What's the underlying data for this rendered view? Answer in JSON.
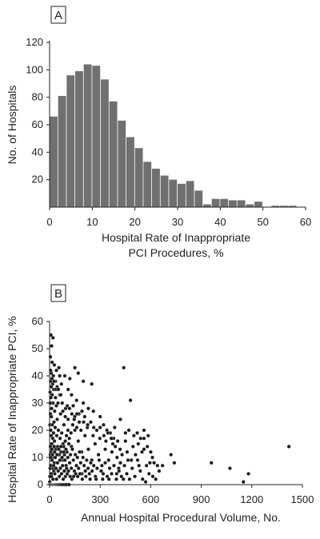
{
  "colors": {
    "bar": "#707070",
    "point": "#1a1a1a",
    "axis": "#222222"
  },
  "chart_data": [
    {
      "panel_label": "A",
      "type": "bar",
      "ylabel": "No. of Hospitals",
      "xlabel_lines": [
        "Hospital Rate of Inappropriate",
        "PCI Procedures, %"
      ],
      "xlim": [
        0,
        60
      ],
      "ylim": [
        0,
        120
      ],
      "xticks": [
        0,
        10,
        20,
        30,
        40,
        50,
        60
      ],
      "yticks": [
        20,
        40,
        60,
        80,
        100,
        120
      ],
      "bin_width": 2,
      "bin_starts": [
        0,
        2,
        4,
        6,
        8,
        10,
        12,
        14,
        16,
        18,
        20,
        22,
        24,
        26,
        28,
        30,
        32,
        34,
        36,
        38,
        40,
        42,
        44,
        46,
        48,
        50,
        52,
        54,
        56
      ],
      "values": [
        66,
        81,
        96,
        99,
        104,
        103,
        93,
        77,
        63,
        51,
        43,
        33,
        28,
        23,
        20,
        17,
        19,
        12,
        2,
        6,
        6,
        5,
        5,
        2,
        4,
        0,
        1,
        1,
        1
      ]
    },
    {
      "panel_label": "B",
      "type": "scatter",
      "ylabel": "Hospital Rate of Inappropriate PCI, %",
      "xlabel": "Annual Hospital Procedural Volume, No.",
      "xlim": [
        0,
        1500
      ],
      "ylim": [
        0,
        60
      ],
      "xticks": [
        0,
        300,
        600,
        900,
        1200,
        1500
      ],
      "yticks": [
        0,
        10,
        20,
        30,
        40,
        50,
        60
      ],
      "points": [
        [
          8,
          55
        ],
        [
          20,
          54
        ],
        [
          12,
          51
        ],
        [
          5,
          47
        ],
        [
          15,
          45
        ],
        [
          28,
          44
        ],
        [
          40,
          42
        ],
        [
          10,
          41
        ],
        [
          22,
          40
        ],
        [
          55,
          43
        ],
        [
          60,
          40
        ],
        [
          35,
          38
        ],
        [
          18,
          37
        ],
        [
          45,
          36
        ],
        [
          70,
          37
        ],
        [
          90,
          40
        ],
        [
          150,
          43
        ],
        [
          120,
          39
        ],
        [
          170,
          41
        ],
        [
          200,
          38
        ],
        [
          250,
          37
        ],
        [
          440,
          43
        ],
        [
          480,
          31
        ],
        [
          110,
          35
        ],
        [
          130,
          33
        ],
        [
          160,
          31
        ],
        [
          140,
          29
        ],
        [
          200,
          30
        ],
        [
          230,
          28
        ],
        [
          260,
          27
        ],
        [
          300,
          25
        ],
        [
          320,
          22
        ],
        [
          340,
          20
        ],
        [
          360,
          19
        ],
        [
          380,
          17
        ],
        [
          420,
          24
        ],
        [
          470,
          20
        ],
        [
          500,
          18
        ],
        [
          540,
          17
        ],
        [
          560,
          13
        ],
        [
          610,
          10
        ],
        [
          670,
          7
        ],
        [
          720,
          11
        ],
        [
          740,
          8
        ],
        [
          960,
          8
        ],
        [
          1070,
          6
        ],
        [
          1150,
          1
        ],
        [
          1180,
          4
        ],
        [
          1420,
          14
        ],
        [
          560,
          20
        ],
        [
          580,
          14
        ],
        [
          600,
          12
        ],
        [
          620,
          8
        ],
        [
          640,
          7
        ],
        [
          460,
          12
        ],
        [
          450,
          16
        ],
        [
          430,
          11
        ],
        [
          420,
          8
        ],
        [
          410,
          6
        ],
        [
          400,
          10
        ],
        [
          390,
          14
        ],
        [
          370,
          12
        ],
        [
          350,
          9
        ],
        [
          330,
          13
        ],
        [
          310,
          7
        ],
        [
          290,
          11
        ],
        [
          270,
          15
        ],
        [
          250,
          9
        ],
        [
          230,
          13
        ],
        [
          210,
          18
        ],
        [
          190,
          12
        ],
        [
          170,
          16
        ],
        [
          150,
          20
        ],
        [
          130,
          14
        ],
        [
          110,
          24
        ],
        [
          100,
          18
        ],
        [
          95,
          28
        ],
        [
          85,
          22
        ],
        [
          80,
          15
        ],
        [
          75,
          30
        ],
        [
          65,
          26
        ],
        [
          60,
          33
        ],
        [
          50,
          30
        ],
        [
          45,
          24
        ],
        [
          40,
          29
        ],
        [
          35,
          32
        ],
        [
          30,
          27
        ],
        [
          25,
          35
        ],
        [
          20,
          30
        ],
        [
          15,
          33
        ],
        [
          12,
          28
        ],
        [
          10,
          36
        ],
        [
          8,
          32
        ],
        [
          6,
          38
        ],
        [
          5,
          26
        ],
        [
          4,
          30
        ],
        [
          3,
          34
        ],
        [
          2,
          22
        ],
        [
          7,
          20
        ],
        [
          9,
          18
        ],
        [
          11,
          25
        ],
        [
          13,
          15
        ],
        [
          16,
          22
        ],
        [
          19,
          17
        ],
        [
          23,
          19
        ],
        [
          26,
          23
        ],
        [
          29,
          16
        ],
        [
          33,
          21
        ],
        [
          37,
          13
        ],
        [
          42,
          18
        ],
        [
          48,
          14
        ],
        [
          52,
          20
        ],
        [
          57,
          11
        ],
        [
          62,
          17
        ],
        [
          68,
          12
        ],
        [
          72,
          19
        ],
        [
          78,
          9
        ],
        [
          83,
          14
        ],
        [
          88,
          11
        ],
        [
          93,
          16
        ],
        [
          98,
          7
        ],
        [
          103,
          12
        ],
        [
          108,
          10
        ],
        [
          114,
          15
        ],
        [
          119,
          8
        ],
        [
          124,
          11
        ],
        [
          129,
          6
        ],
        [
          135,
          13
        ],
        [
          141,
          9
        ],
        [
          147,
          5
        ],
        [
          153,
          11
        ],
        [
          159,
          7
        ],
        [
          165,
          10
        ],
        [
          172,
          6
        ],
        [
          178,
          12
        ],
        [
          184,
          8
        ],
        [
          192,
          4
        ],
        [
          198,
          10
        ],
        [
          205,
          7
        ],
        [
          212,
          5
        ],
        [
          220,
          9
        ],
        [
          228,
          6
        ],
        [
          236,
          4
        ],
        [
          244,
          8
        ],
        [
          252,
          5
        ],
        [
          262,
          7
        ],
        [
          272,
          3
        ],
        [
          282,
          6
        ],
        [
          294,
          9
        ],
        [
          306,
          5
        ],
        [
          318,
          4
        ],
        [
          330,
          8
        ],
        [
          342,
          3
        ],
        [
          356,
          6
        ],
        [
          368,
          4
        ],
        [
          382,
          7
        ],
        [
          396,
          2
        ],
        [
          412,
          5
        ],
        [
          426,
          3
        ],
        [
          444,
          7
        ],
        [
          458,
          4
        ],
        [
          474,
          2
        ],
        [
          490,
          6
        ],
        [
          506,
          3
        ],
        [
          522,
          9
        ],
        [
          538,
          5
        ],
        [
          552,
          2
        ],
        [
          575,
          7
        ],
        [
          590,
          4
        ],
        [
          612,
          3
        ],
        [
          548,
          12
        ],
        [
          526,
          15
        ],
        [
          510,
          11
        ],
        [
          495,
          14
        ],
        [
          485,
          9
        ],
        [
          30,
          12
        ],
        [
          28,
          8
        ],
        [
          25,
          5
        ],
        [
          22,
          10
        ],
        [
          18,
          6
        ],
        [
          14,
          9
        ],
        [
          10,
          4
        ],
        [
          8,
          12
        ],
        [
          6,
          7
        ],
        [
          4,
          11
        ],
        [
          3,
          6
        ],
        [
          2,
          3
        ],
        [
          1,
          1
        ],
        [
          5,
          14
        ],
        [
          7,
          10
        ],
        [
          9,
          7
        ],
        [
          11,
          3
        ],
        [
          14,
          13
        ],
        [
          17,
          11
        ],
        [
          20,
          2
        ],
        [
          24,
          7
        ],
        [
          27,
          14
        ],
        [
          31,
          4
        ],
        [
          34,
          10
        ],
        [
          38,
          6
        ],
        [
          41,
          2
        ],
        [
          44,
          11
        ],
        [
          47,
          8
        ],
        [
          51,
          5
        ],
        [
          54,
          13
        ],
        [
          58,
          3
        ],
        [
          61,
          9
        ],
        [
          64,
          6
        ],
        [
          67,
          14
        ],
        [
          71,
          4
        ],
        [
          74,
          10
        ],
        [
          77,
          7
        ],
        [
          81,
          2
        ],
        [
          84,
          12
        ],
        [
          87,
          5
        ],
        [
          91,
          9
        ],
        [
          94,
          3
        ],
        [
          97,
          13
        ],
        [
          101,
          6
        ],
        [
          105,
          4
        ],
        [
          109,
          20
        ],
        [
          112,
          5
        ],
        [
          117,
          17
        ],
        [
          122,
          3
        ],
        [
          127,
          19
        ],
        [
          132,
          2
        ],
        [
          137,
          22
        ],
        [
          143,
          3
        ],
        [
          149,
          25
        ],
        [
          155,
          4
        ],
        [
          161,
          21
        ],
        [
          167,
          3
        ],
        [
          174,
          26
        ],
        [
          180,
          4
        ],
        [
          186,
          20
        ],
        [
          194,
          2
        ],
        [
          202,
          23
        ],
        [
          215,
          3
        ],
        [
          224,
          21
        ],
        [
          240,
          2
        ],
        [
          258,
          18
        ],
        [
          276,
          2
        ],
        [
          298,
          17
        ],
        [
          315,
          2
        ],
        [
          334,
          16
        ],
        [
          352,
          2
        ],
        [
          375,
          15
        ],
        [
          398,
          4
        ],
        [
          418,
          13
        ],
        [
          438,
          2
        ],
        [
          465,
          9
        ],
        [
          530,
          7
        ],
        [
          570,
          1
        ],
        [
          595,
          8
        ],
        [
          630,
          2
        ],
        [
          3,
          0
        ],
        [
          6,
          0
        ],
        [
          9,
          0
        ],
        [
          12,
          0
        ],
        [
          15,
          0
        ],
        [
          18,
          0
        ],
        [
          21,
          0
        ],
        [
          24,
          0
        ],
        [
          27,
          0
        ],
        [
          30,
          0
        ],
        [
          33,
          0
        ],
        [
          36,
          0
        ],
        [
          39,
          0
        ],
        [
          42,
          0
        ],
        [
          46,
          0
        ],
        [
          50,
          0
        ],
        [
          55,
          0
        ],
        [
          60,
          0
        ],
        [
          66,
          0
        ],
        [
          72,
          0
        ],
        [
          80,
          0
        ],
        [
          90,
          0
        ],
        [
          100,
          0
        ],
        [
          115,
          0
        ],
        [
          6,
          42
        ],
        [
          14,
          39
        ],
        [
          27,
          38
        ],
        [
          38,
          35
        ],
        [
          52,
          35
        ],
        [
          66,
          33
        ],
        [
          79,
          27
        ],
        [
          93,
          25
        ],
        [
          105,
          29
        ],
        [
          118,
          28
        ],
        [
          132,
          26
        ],
        [
          146,
          24
        ],
        [
          162,
          26
        ],
        [
          176,
          23
        ],
        [
          192,
          27
        ],
        [
          208,
          25
        ],
        [
          226,
          22
        ],
        [
          244,
          23
        ],
        [
          262,
          21
        ],
        [
          280,
          20
        ],
        [
          300,
          21
        ],
        [
          322,
          18
        ],
        [
          346,
          19
        ],
        [
          366,
          17
        ],
        [
          386,
          21
        ],
        [
          404,
          16
        ],
        [
          450,
          19
        ],
        [
          520,
          19
        ],
        [
          560,
          17
        ],
        [
          585,
          18
        ],
        [
          650,
          5
        ]
      ]
    }
  ]
}
